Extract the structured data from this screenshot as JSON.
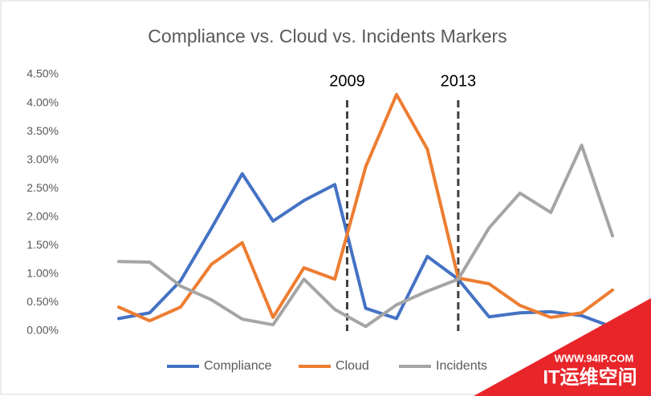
{
  "chart_data": {
    "type": "line",
    "title": "Compliance vs. Cloud vs. Incidents Markers",
    "categories": [
      null,
      null,
      null,
      null,
      null,
      null,
      null,
      null,
      null,
      null,
      null,
      null,
      null,
      null,
      null,
      null,
      null
    ],
    "series": [
      {
        "name": "Compliance",
        "color": "#4472c4",
        "values": [
          0.22,
          0.32,
          0.88,
          1.8,
          2.76,
          1.93,
          2.29,
          2.57,
          0.4,
          0.22,
          1.31,
          0.91,
          0.25,
          0.32,
          0.34,
          0.27,
          0.07
        ]
      },
      {
        "name": "Cloud",
        "color": "#ed7d31",
        "values": [
          0.42,
          0.18,
          0.42,
          1.17,
          1.55,
          0.24,
          1.11,
          0.91,
          2.88,
          4.15,
          3.19,
          0.93,
          0.83,
          0.45,
          0.24,
          0.32,
          0.72
        ]
      },
      {
        "name": "Incidents",
        "color": "#a5a5a5",
        "values": [
          1.22,
          1.21,
          0.79,
          0.55,
          0.21,
          0.11,
          0.91,
          0.38,
          0.08,
          0.46,
          0.7,
          0.91,
          1.81,
          2.42,
          2.08,
          3.26,
          1.67
        ]
      }
    ],
    "ylim": [
      0,
      4.5
    ],
    "yticks": [
      {
        "value": 0,
        "label": "0.00%"
      },
      {
        "value": 0.5,
        "label": "0.50%"
      },
      {
        "value": 1,
        "label": "1.00%"
      },
      {
        "value": 1.5,
        "label": "1.50%"
      },
      {
        "value": 2,
        "label": "2.00%"
      },
      {
        "value": 2.5,
        "label": "2.50%"
      },
      {
        "value": 3,
        "label": "3.00%"
      },
      {
        "value": 3.5,
        "label": "3.50%"
      },
      {
        "value": 4,
        "label": "4.00%"
      },
      {
        "value": 4.5,
        "label": "4.50%"
      }
    ],
    "grid": false,
    "legend": "bottom",
    "annotations": [
      {
        "label": "2009",
        "x": 7.4
      },
      {
        "label": "2013",
        "x": 11
      }
    ]
  },
  "watermark": {
    "url": "WWW.94IP.COM",
    "name": "IT运维空间"
  }
}
